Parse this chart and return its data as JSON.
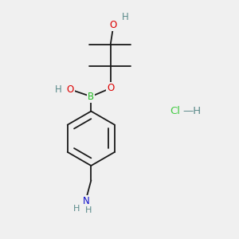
{
  "bg_color": "#f0f0f0",
  "atom_colors": {
    "C": "#1a1a1a",
    "H": "#5a8a8a",
    "O": "#dd0000",
    "B": "#22bb22",
    "N": "#1111cc",
    "Cl": "#44cc44"
  },
  "bond_color": "#1a1a1a",
  "bond_lw": 1.3,
  "font_size": 8.5
}
